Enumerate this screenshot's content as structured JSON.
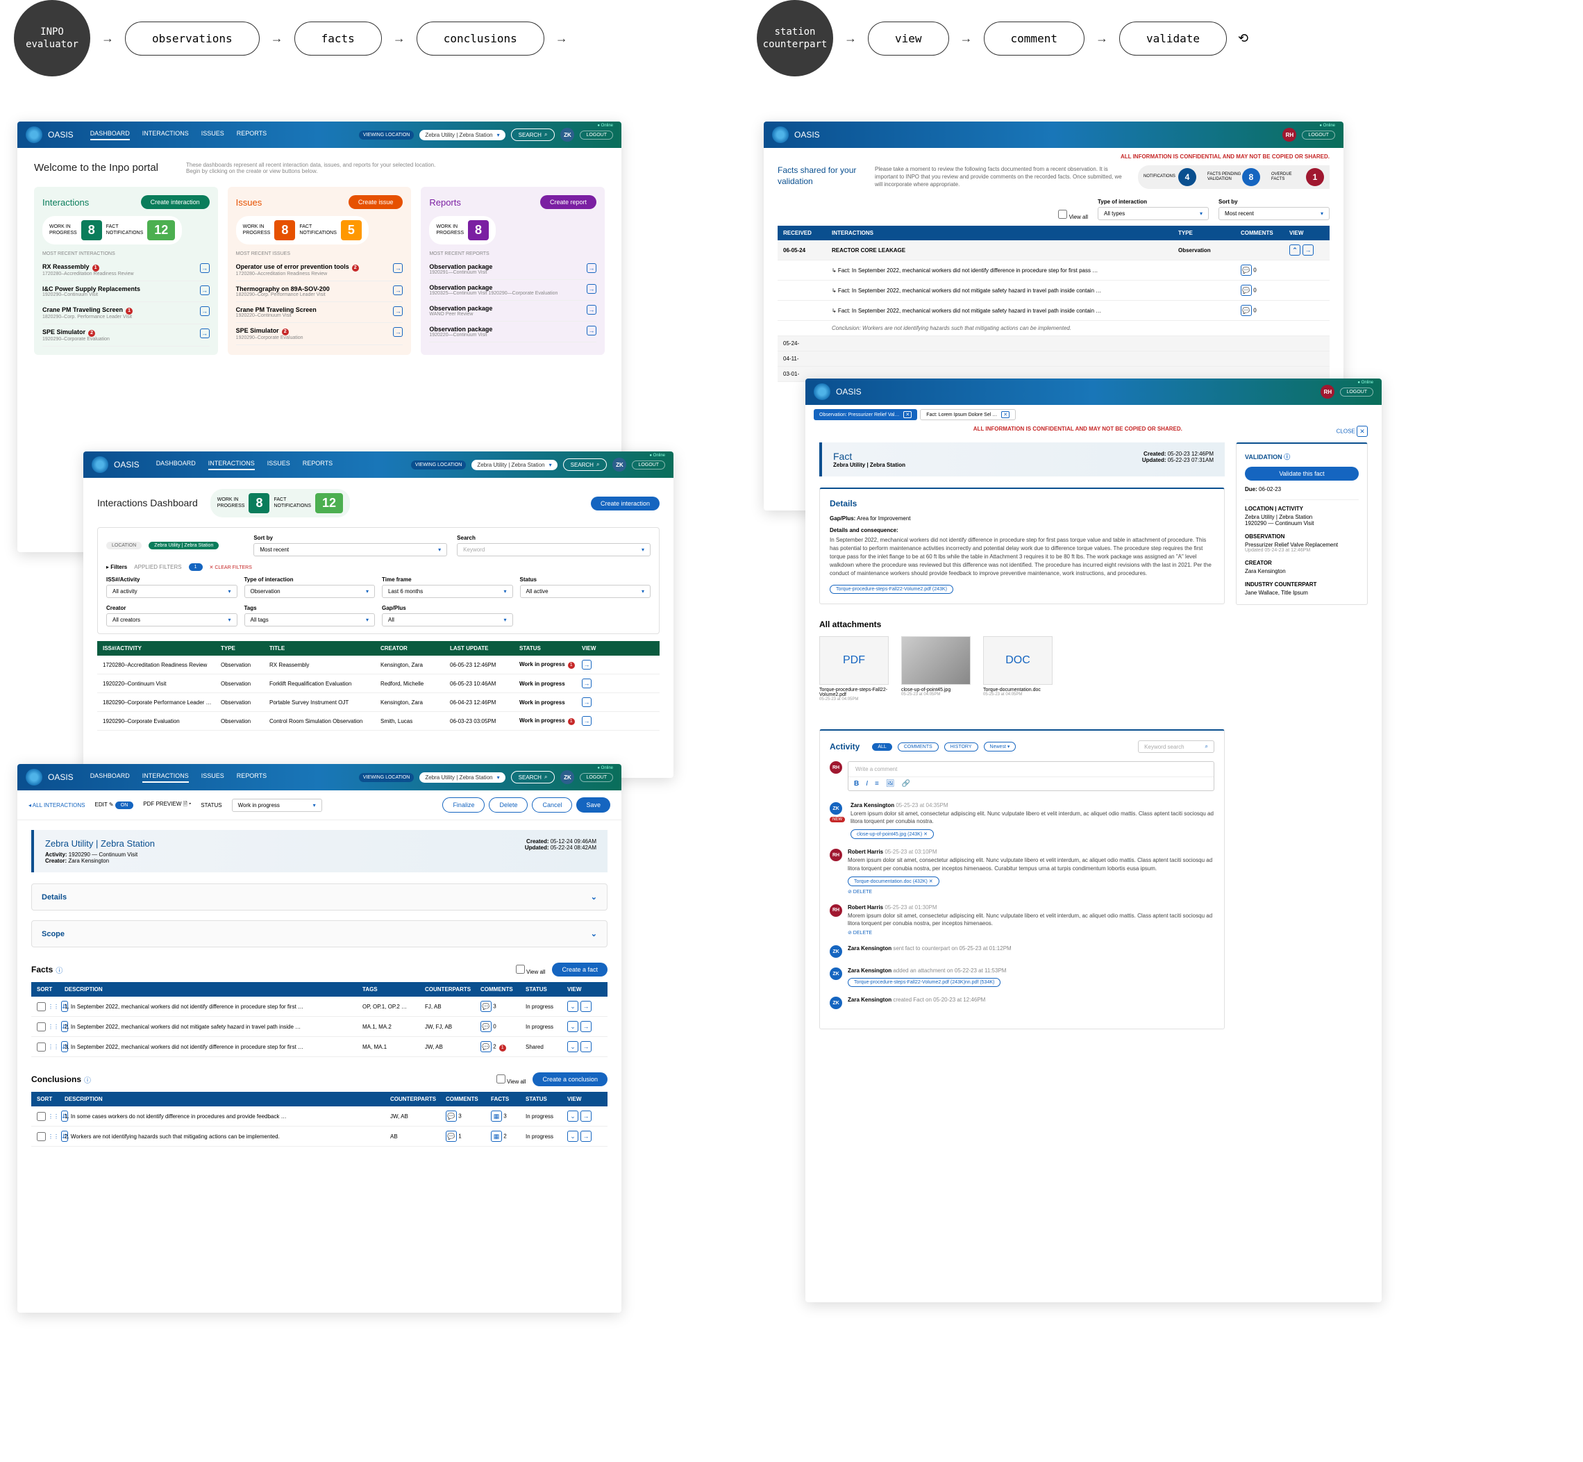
{
  "flow": {
    "left": {
      "circle": "INPO\nevaluator",
      "steps": [
        "observations",
        "facts",
        "conclusions"
      ]
    },
    "right": {
      "circle": "station\ncounterpart",
      "steps": [
        "view",
        "comment",
        "validate"
      ]
    }
  },
  "nav": {
    "brand": "OASIS",
    "items": [
      "DASHBOARD",
      "INTERACTIONS",
      "ISSUES",
      "REPORTS"
    ],
    "location": "Zebra Utility | Zebra Station",
    "search": "SEARCH",
    "logout": "LOGOUT",
    "avatars": {
      "zk": "ZK",
      "rh": "RH"
    },
    "online": "● Online",
    "viewing": "VIEWING\nLOCATION"
  },
  "portal": {
    "title": "Welcome to the Inpo portal",
    "sub": "These dashboards represent all recent interaction data, issues, and reports for your selected location.\nBegin by clicking on the create or view buttons below.",
    "cols": [
      {
        "title": "Interactions",
        "btn": "Create interaction",
        "accent": "#0a7d5b",
        "stats": [
          {
            "l1": "WORK IN",
            "l2": "PROGRESS",
            "n": "8",
            "c": "#0a7d5b"
          },
          {
            "l1": "FACT",
            "l2": "NOTIFICATIONS",
            "n": "12",
            "c": "#4caf50"
          }
        ],
        "sub": "MOST RECENT INTERACTIONS",
        "items": [
          {
            "t": "RX Reassembly",
            "badge": "1",
            "s": "1720280–Accreditation Readiness Review"
          },
          {
            "t": "I&C Power Supply Replacements",
            "s": "1920290–Continuum Visit"
          },
          {
            "t": "Crane PM Traveling Screen",
            "badge": "1",
            "s": "1820290–Corp. Performance Leader Visit"
          },
          {
            "t": "SPE Simulator",
            "badge": "2",
            "s": "1920290–Corporate Evaluation"
          }
        ]
      },
      {
        "title": "Issues",
        "btn": "Create issue",
        "accent": "#e65100",
        "stats": [
          {
            "l1": "WORK IN",
            "l2": "PROGRESS",
            "n": "8",
            "c": "#e65100"
          },
          {
            "l1": "FACT",
            "l2": "NOTIFICATIONS",
            "n": "5",
            "c": "#ff9800"
          }
        ],
        "sub": "MOST RECENT ISSUES",
        "items": [
          {
            "t": "Operator use of error prevention tools",
            "badge": "2",
            "s": "1720280–Accreditation Readiness Review"
          },
          {
            "t": "Thermography on 89A-SOV-200",
            "s": "1820290–Corp. Performance Leader Visit"
          },
          {
            "t": "Crane PM Traveling Screen",
            "s": "1920220–Continuum Visit"
          },
          {
            "t": "SPE Simulator",
            "badge": "2",
            "s": "1920290–Corporate Evaluation"
          }
        ]
      },
      {
        "title": "Reports",
        "btn": "Create report",
        "accent": "#7b1fa2",
        "stats": [
          {
            "l1": "WORK IN",
            "l2": "PROGRESS",
            "n": "8",
            "c": "#7b1fa2"
          }
        ],
        "sub": "MOST RECENT REPORTS",
        "items": [
          {
            "t": "Observation package",
            "s": "1920291—Continuum Visit"
          },
          {
            "t": "Observation package",
            "s": "1920325—Continuum Visit\n1920290—Corporate Evaluation"
          },
          {
            "t": "Observation package",
            "s": "WANO Peer Review"
          },
          {
            "t": "Observation package",
            "s": "1920220—Continuum Visit"
          }
        ]
      }
    ]
  },
  "interactions": {
    "title": "Interactions Dashboard",
    "btn": "Create interaction",
    "stats": [
      {
        "l1": "WORK IN",
        "l2": "PROGRESS",
        "n": "8",
        "c": "#0a7d5b"
      },
      {
        "l1": "FACT",
        "l2": "NOTIFICATIONS",
        "n": "12",
        "c": "#4caf50"
      }
    ],
    "location_chip": "Zebra Utility | Zebra Station",
    "loc_lbl": "LOCATION",
    "filters_lbl": "Filters",
    "applied": "APPLIED FILTERS",
    "count": "1",
    "clear": "CLEAR FILTERS",
    "fields": [
      {
        "l": "ISS#/Activity",
        "v": "All activity"
      },
      {
        "l": "Type of interaction",
        "v": "Observation"
      },
      {
        "l": "Time frame",
        "v": "Last 6 months"
      },
      {
        "l": "Status",
        "v": "All active"
      },
      {
        "l": "Creator",
        "v": "All creators"
      },
      {
        "l": "Tags",
        "v": "All tags"
      },
      {
        "l": "Gap/Plus",
        "v": "All"
      }
    ],
    "sort_lbl": "Sort by",
    "sort": "Most recent",
    "search_lbl": "Search",
    "search_ph": "Keyword",
    "cols": [
      "ISS#/ACTIVITY",
      "TYPE",
      "TITLE",
      "CREATOR",
      "LAST UPDATE",
      "STATUS",
      "VIEW"
    ],
    "rows": [
      [
        "1720280–Accreditation Readiness Review",
        "Observation",
        "RX Reassembly",
        "Kensington, Zara",
        "06-05-23 12:46PM",
        "Work in progress",
        "1"
      ],
      [
        "1920220–Continuum Visit",
        "Observation",
        "Forklift Requalification Evaluation",
        "Redford, Michelle",
        "06-05-23 10:46AM",
        "Work in progress",
        ""
      ],
      [
        "1820290–Corporate Performance Leader …",
        "Observation",
        "Portable Survey Instrument OJT",
        "Kensington, Zara",
        "06-04-23 12:46PM",
        "Work in progress",
        ""
      ],
      [
        "1920290–Corporate Evaluation",
        "Observation",
        "Control Room Simulation Observation",
        "Smith, Lucas",
        "06-03-23 03:05PM",
        "Work in progress",
        "1"
      ]
    ]
  },
  "detail": {
    "back": "ALL INTERACTIONS",
    "edit": "EDIT",
    "on": "ON",
    "preview": "PDF PREVIEW",
    "status_l": "STATUS",
    "status_v": "Work in progress",
    "actions": [
      "Finalize",
      "Delete",
      "Cancel",
      "Save"
    ],
    "loc": "Zebra Utility | Zebra Station",
    "activity_l": "Activity:",
    "activity": "1920290 — Continuum Visit",
    "creator_l": "Creator:",
    "creator": "Zara Kensington",
    "created_l": "Created:",
    "created": "05-12-24 09:46AM",
    "updated_l": "Updated:",
    "updated": "05-22-24 08:42AM",
    "panels": [
      "Details",
      "Scope"
    ],
    "facts_title": "Facts",
    "viewall": "View all",
    "create_fact": "Create a fact",
    "fact_cols": [
      "SORT",
      "DESCRIPTION",
      "TAGS",
      "COUNTERPARTS",
      "COMMENTS",
      "STATUS",
      "VIEW"
    ],
    "fact_rows": [
      {
        "n": "1.",
        "d": "In September 2022, mechanical workers did not identify difference in procedure step for first …",
        "tags": "OP, OP.1, OP.2 …",
        "cp": "FJ, AB",
        "c": "3",
        "st": "In progress"
      },
      {
        "n": "2.",
        "d": "In September 2022, mechanical workers did not mitigate safety hazard in travel path inside …",
        "tags": "MA.1, MA.2",
        "cp": "JW, FJ, AB",
        "c": "0",
        "st": "In progress"
      },
      {
        "n": "3.",
        "d": "In September 2022, mechanical workers did not identify difference in procedure step for first …",
        "tags": "MA, MA.1",
        "cp": "JW, AB",
        "c": "2",
        "st": "Shared",
        "badge": "1"
      }
    ],
    "conc_title": "Conclusions",
    "create_conc": "Create a conclusion",
    "conc_cols": [
      "SORT",
      "DESCRIPTION",
      "COUNTERPARTS",
      "COMMENTS",
      "FACTS",
      "STATUS",
      "VIEW"
    ],
    "conc_rows": [
      {
        "n": "1.",
        "d": "In some cases workers do not identify difference in procedures and provide feedback …",
        "cp": "JW, AB",
        "c": "3",
        "f": "3",
        "st": "In progress"
      },
      {
        "n": "2.",
        "d": "Workers are not identifying hazards such that mitigating actions can be implemented.",
        "cp": "AB",
        "c": "1",
        "f": "2",
        "st": "In progress"
      }
    ]
  },
  "validation": {
    "confidential": "ALL INFORMATION IS CONFIDENTIAL AND MAY NOT BE COPIED OR SHARED.",
    "title": "Facts shared for your validation",
    "sub": "Please take a moment to review the following facts documented from a recent observation. It is important to INPO that you review and provide comments on the recorded facts. Once submitted, we will incorporate where appropriate.",
    "badges": [
      {
        "l": "NOTIFICATIONS",
        "n": "4",
        "c": "#0a4f8f"
      },
      {
        "l": "FACTS PENDING VALIDATION",
        "n": "8",
        "c": "#1565c0"
      },
      {
        "l": "OVERDUE FACTS",
        "n": "1",
        "c": "#a01830"
      }
    ],
    "viewall": "View all",
    "type_l": "Type of interaction",
    "type_v": "All types",
    "sort_l": "Sort by",
    "sort_v": "Most recent",
    "cols": [
      "RECEIVED",
      "INTERACTIONS",
      "TYPE",
      "COMMENTS",
      "VIEW"
    ],
    "date": "06-05-24",
    "int": "REACTOR CORE LEAKAGE",
    "itype": "Observation",
    "facts": [
      "Fact: In September 2022, mechanical workers did not identify difference in procedure step for first pass …",
      "Fact: In September 2022, mechanical workers did not mitigate safety hazard in travel path inside contain …",
      "Fact: In September 2022, mechanical workers did not mitigate safety hazard in travel path inside contain …"
    ],
    "conc": "Conclusion: Workers are not identifying hazards such that mitigating actions can be implemented.",
    "extra": [
      "05-24-",
      "04-11-",
      "03-01-"
    ]
  },
  "fact": {
    "confidential": "ALL INFORMATION IS CONFIDENTIAL AND MAY NOT BE COPIED OR SHARED.",
    "close": "CLOSE",
    "tab1": "Observation: Pressurizer Relief Val…",
    "tab2": "Fact: Lorem Ipsum Dolore Sel …",
    "h": "Fact",
    "loc": "Zebra Utility | Zebra Station",
    "created_l": "Created:",
    "created": "05-20-23 12:46PM",
    "updated_l": "Updated:",
    "updated": "05-22-23 07:31AM",
    "details_h": "Details",
    "gap_l": "Gap/Plus:",
    "gap": "Area for Improvement",
    "cons_l": "Details and consequence:",
    "body": "In September 2022, mechanical workers did not identify difference in procedure step for first pass torque value and table in attachment of procedure. This has potential to perform maintenance activities incorrectly and potential delay work due to difference torque values. The procedure step requires the first torque pass for the inlet flange to be at 60 ft lbs while the table in Attachment 3 requires it to be 80 ft lbs. The work package was assigned an \"A\" level walkdown where the procedure was reviewed but this difference was not identified. The procedure has incurred eight revisions with the last in 2021.  Per the conduct of maintenance workers should provide feedback to improve preventive maintenance, work instructions, and procedures.",
    "chip": "Torque-procedure-steps-Fall22-Volume2.pdf (243K)",
    "side": {
      "val_h": "VALIDATION",
      "btn": "Validate this fact",
      "due_l": "Due:",
      "due": "06-02-23",
      "loc_h": "LOCATION | ACTIVITY",
      "loc": "Zebra Utility | Zebra Station",
      "act": "1920290 — Continuum Visit",
      "obs_h": "OBSERVATION",
      "obs": "Pressurizer Relief Valve Replacement",
      "obs_s": "Updated 05-24-23 at 12:46PM",
      "cr_h": "CREATOR",
      "cr": "Zara Kensington",
      "ic_h": "INDUSTRY COUNTERPART",
      "ic": "Jane Wallace, Title Ipsum"
    },
    "att_h": "All attachments",
    "atts": [
      {
        "type": "PDF",
        "n": "Torque-procedure-steps-Fall22-Volume2.pdf",
        "s": "05-25-23 at 04:05PM"
      },
      {
        "type": "IMG",
        "n": "close-up-of-point45.jpg",
        "s": "05-25-23 at 04:05PM"
      },
      {
        "type": "DOC",
        "n": "Torque-documentation.doc",
        "s": "05-25-23 at 04:05PM"
      }
    ],
    "activity": {
      "h": "Activity",
      "tabs": [
        "ALL",
        "COMMENTS",
        "HISTORY"
      ],
      "newest": "Newest",
      "search": "Keyword search",
      "write": "Write a comment",
      "items": [
        {
          "av": "ZK",
          "c": "#1565c0",
          "who": "Zara Kensington",
          "when": "05-25-23 at 04:35PM",
          "txt": "Lorem ipsum dolor sit amet, consectetur adipiscing elit. Nunc vulputate libero et velit interdum, ac aliquet odio mattis. Class aptent taciti sociosqu ad litora torquent per conubia nostra.",
          "chip": "close-up-of-point45.jpg (243K)",
          "badge": "NEW"
        },
        {
          "av": "RH",
          "c": "#a01830",
          "who": "Robert Harris",
          "when": "05-25-23 at 03:10PM",
          "txt": "Morem ipsum dolor sit amet, consectetur adipiscing elit. Nunc vulputate libero et velit interdum, ac aliquet odio mattis. Class aptent taciti sociosqu ad litora torquent per conubia nostra, per inceptos himenaeos. Curabitur tempus urna at turpis condimentum lobortis eusa ipsum.",
          "chip": "Torque-documentation.doc (432K)",
          "del": "DELETE"
        },
        {
          "av": "RH",
          "c": "#a01830",
          "who": "Robert Harris",
          "when": "05-25-23 at 01:30PM",
          "txt": "Morem ipsum dolor sit amet, consectetur adipiscing elit. Nunc vulputate libero et velit interdum, ac aliquet odio mattis. Class aptent taciti sociosqu ad litora torquent per conubia nostra, per inceptos himenaeos.",
          "del": "DELETE"
        },
        {
          "av": "ZK",
          "c": "#1565c0",
          "who": "Zara Kensington",
          "line": "sent fact to counterpart on 05-25-23 at 01:12PM"
        },
        {
          "av": "ZK",
          "c": "#1565c0",
          "who": "Zara Kensington",
          "line": "added an attachment on 05-22-23 at 11:53PM",
          "chip": "Torque-procedure-steps-Fall22-Volume2.pdf (243K)nn.pdf (534K)"
        },
        {
          "av": "ZK",
          "c": "#1565c0",
          "who": "Zara Kensington",
          "line": "created Fact on 05-20-23 at 12:46PM"
        }
      ]
    }
  }
}
